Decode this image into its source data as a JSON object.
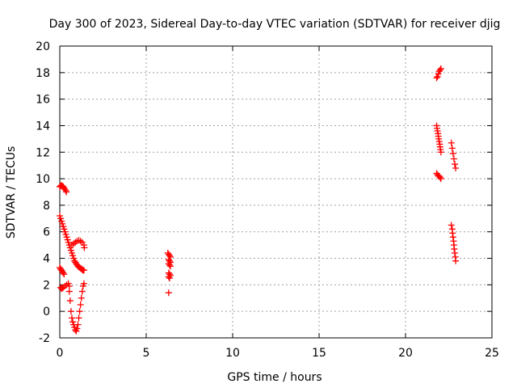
{
  "chart_data": {
    "type": "scatter",
    "title": "Day 300 of 2023, Sidereal Day-to-day VTEC variation (SDTVAR) for receiver djig",
    "xlabel": "GPS time / hours",
    "ylabel": "SDTVAR / TECUs",
    "xlim": [
      0,
      25
    ],
    "ylim": [
      -2,
      20
    ],
    "xticks": [
      0,
      5,
      10,
      15,
      20,
      25
    ],
    "yticks": [
      -2,
      0,
      2,
      4,
      6,
      8,
      10,
      12,
      14,
      16,
      18,
      20
    ],
    "grid": true,
    "marker": "+",
    "color": "#ff0000",
    "series": [
      {
        "x": [
          0.0,
          0.05,
          0.1,
          0.15,
          0.2,
          0.25,
          0.3,
          0.35,
          0.38,
          0.0,
          0.05,
          0.1,
          0.15,
          0.2,
          0.25,
          0.3,
          0.35,
          0.4,
          0.45,
          0.5,
          0.55,
          0.6,
          0.65,
          0.7,
          0.75,
          0.8,
          0.85,
          0.9,
          0.95,
          1.0,
          1.05,
          1.1,
          1.15,
          1.2,
          1.25,
          1.3,
          1.35,
          1.4,
          0.7,
          0.8,
          0.9,
          1.0,
          1.1,
          1.2,
          1.3,
          1.4,
          1.42,
          0.0,
          0.05,
          0.1,
          0.15,
          0.2,
          0.25,
          0.05,
          0.1,
          0.15,
          0.2,
          0.3,
          0.4,
          0.5,
          0.55,
          0.55,
          0.6,
          0.65,
          0.7,
          0.75,
          0.8,
          0.85,
          0.9,
          0.95,
          1.0,
          1.05,
          1.1,
          1.15,
          1.2,
          1.25,
          1.3,
          1.35,
          1.4,
          6.25,
          6.3,
          6.35,
          6.4,
          6.3,
          6.35,
          6.4,
          6.3,
          6.35,
          6.4,
          6.3,
          6.35,
          6.4,
          6.3,
          6.35,
          6.3,
          21.8,
          21.85,
          21.9,
          21.95,
          22.0,
          22.05,
          21.8,
          21.82,
          21.85,
          21.88,
          21.9,
          21.92,
          21.95,
          21.98,
          22.0,
          22.02,
          22.05,
          21.8,
          21.85,
          21.9,
          21.95,
          22.0,
          22.05,
          22.65,
          22.7,
          22.75,
          22.8,
          22.85,
          22.9,
          22.65,
          22.7,
          22.72,
          22.75,
          22.78,
          22.8,
          22.82,
          22.85,
          22.88,
          22.9
        ],
        "y": [
          9.4,
          9.45,
          9.5,
          9.45,
          9.4,
          9.3,
          9.2,
          9.1,
          9.0,
          7.2,
          7.0,
          6.8,
          6.6,
          6.4,
          6.2,
          6.0,
          5.8,
          5.6,
          5.4,
          5.2,
          5.0,
          4.8,
          4.6,
          4.4,
          4.2,
          4.0,
          3.8,
          3.7,
          3.6,
          3.5,
          3.4,
          3.35,
          3.3,
          3.25,
          3.2,
          3.15,
          3.1,
          3.1,
          5.0,
          5.1,
          5.2,
          5.3,
          5.35,
          5.3,
          5.2,
          5.0,
          4.8,
          3.3,
          3.2,
          3.1,
          3.0,
          2.9,
          2.8,
          1.8,
          1.7,
          1.75,
          1.8,
          1.9,
          2.0,
          2.1,
          1.9,
          1.5,
          0.8,
          0.0,
          -0.5,
          -0.8,
          -1.0,
          -1.2,
          -1.4,
          -1.5,
          -1.3,
          -1.0,
          -0.5,
          0.0,
          0.5,
          1.0,
          1.5,
          1.9,
          2.1,
          4.4,
          4.3,
          4.2,
          4.1,
          3.9,
          3.8,
          3.7,
          3.6,
          3.5,
          3.4,
          2.9,
          2.8,
          2.7,
          2.6,
          2.5,
          1.4,
          17.6,
          17.7,
          17.9,
          18.1,
          18.2,
          18.3,
          14.0,
          13.8,
          13.6,
          13.4,
          13.2,
          13.0,
          12.8,
          12.6,
          12.4,
          12.2,
          12.0,
          10.4,
          10.3,
          10.2,
          10.2,
          10.1,
          10.0,
          12.7,
          12.3,
          11.9,
          11.5,
          11.1,
          10.8,
          6.5,
          6.2,
          5.9,
          5.6,
          5.3,
          5.0,
          4.7,
          4.4,
          4.1,
          3.8
        ]
      }
    ]
  }
}
